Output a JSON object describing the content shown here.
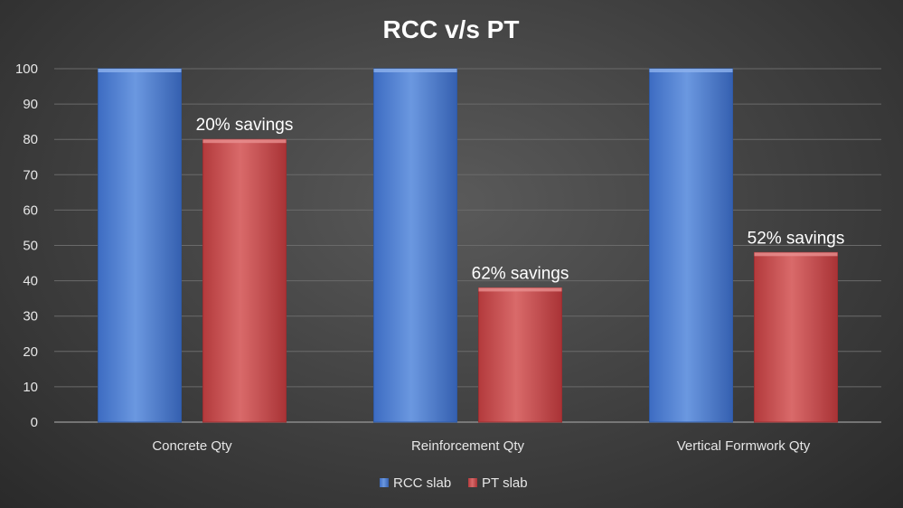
{
  "chart_data": {
    "type": "bar",
    "title": "RCC v/s PT",
    "xlabel": "",
    "ylabel": "",
    "categories": [
      "Concrete Qty",
      "Reinforcement Qty",
      "Vertical Formwork Qty"
    ],
    "series": [
      {
        "name": "RCC slab",
        "values": [
          100,
          100,
          100
        ],
        "color": "#4f7fd0"
      },
      {
        "name": "PT slab",
        "values": [
          80,
          38,
          48
        ],
        "color": "#c9494b"
      }
    ],
    "annotations": [
      "20% savings",
      "62% savings",
      "52% savings"
    ],
    "ylim": [
      0,
      100
    ],
    "yticks": [
      0,
      10,
      20,
      30,
      40,
      50,
      60,
      70,
      80,
      90,
      100
    ],
    "grid": true,
    "legend_position": "bottom"
  }
}
